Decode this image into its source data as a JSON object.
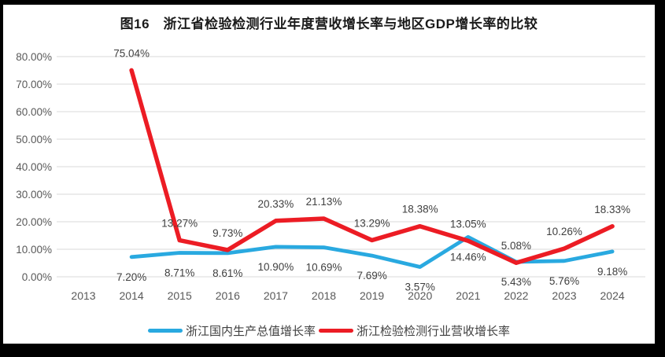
{
  "frame": {
    "background": "#000000",
    "canvas_background": "#ffffff"
  },
  "chart_data": {
    "type": "line",
    "title": "图16　浙江省检验检测行业年度营收增长率与地区GDP增长率的比较",
    "categories": [
      "2013",
      "2014",
      "2015",
      "2016",
      "2017",
      "2018",
      "2019",
      "2020",
      "2021",
      "2022",
      "2023",
      "2024"
    ],
    "series": [
      {
        "name": "浙江国内生产总值增长率",
        "color": "#29A9E0",
        "values": [
          null,
          7.2,
          8.71,
          8.61,
          10.9,
          10.69,
          7.69,
          3.57,
          14.46,
          5.43,
          5.76,
          9.18
        ],
        "label_position": "below"
      },
      {
        "name": "浙江检验检测行业营收增长率",
        "color": "#EC1C24",
        "values": [
          null,
          75.04,
          13.27,
          9.73,
          20.33,
          21.13,
          13.29,
          18.38,
          13.05,
          5.08,
          10.26,
          18.33
        ],
        "label_position": "above"
      }
    ],
    "y_ticks": [
      "0.00%",
      "10.00%",
      "20.00%",
      "30.00%",
      "40.00%",
      "50.00%",
      "60.00%",
      "70.00%",
      "80.00%"
    ],
    "ylim": [
      0,
      80
    ],
    "grid": true,
    "legend_position": "bottom",
    "grid_color": "#D9D9D9",
    "axis_text_color": "#595959",
    "data_label_color": "#3f3f3f"
  }
}
